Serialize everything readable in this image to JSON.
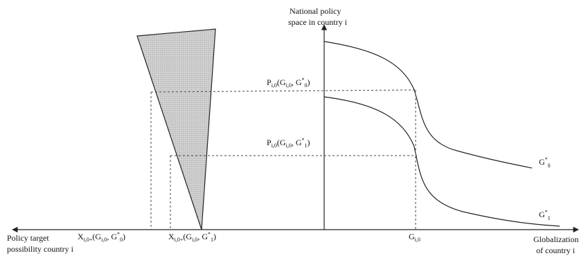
{
  "labels": {
    "y_axis_line1": "National policy",
    "y_axis_line2": "space in country i",
    "x_axis_right_line1": "Globalization",
    "x_axis_right_line2": "of country i",
    "x_axis_left_line1": "Policy target",
    "x_axis_left_line2": "possibility country i",
    "curve_g0": {
      "main": "G",
      "sup": "*",
      "sub": "0"
    },
    "curve_g1": {
      "main": "G",
      "sup": "*",
      "sub": "1"
    },
    "g_i0": {
      "main": "G",
      "sub": "i,0"
    },
    "p_upper": {
      "main": "P",
      "sub": "i,0",
      "args": "(G",
      "args_sub": "i,0",
      "args_rest": ", G",
      "args_sup": "*",
      "args_sub2": "0",
      "close": ")"
    },
    "p_lower": {
      "main": "P",
      "sub": "i,0",
      "args": "(G",
      "args_sub": "i,0",
      "args_rest": ", G",
      "args_sup": "*",
      "args_sub2": "1",
      "close": ")"
    },
    "x_left_0": {
      "main": "X",
      "sub": "i,0+",
      "args": "(G",
      "args_sub": "i,0",
      "args_rest": ", G",
      "args_sup": "*",
      "args_sub2": "0",
      "close": ")"
    },
    "x_left_1": {
      "main": "X",
      "sub": "i,0+",
      "args": "(G",
      "args_sub": "i,0",
      "args_rest": ", G",
      "args_sup": "*",
      "args_sub2": "1",
      "close": ")"
    }
  },
  "colors": {
    "line": "#222222",
    "triangle_fill": "#d2d2d2",
    "dash": "#444444"
  }
}
